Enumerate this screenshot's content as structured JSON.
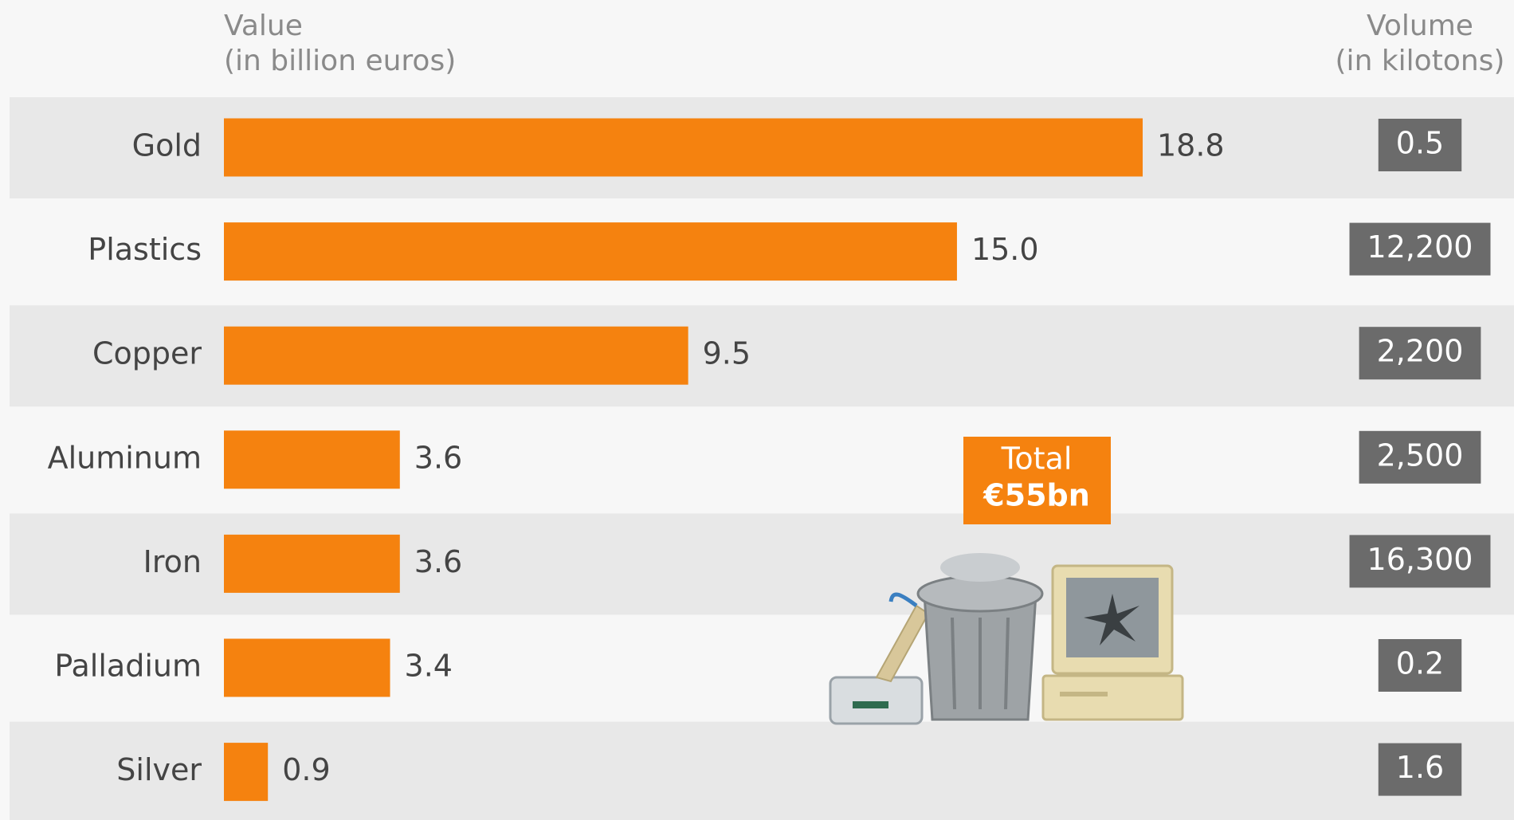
{
  "chart_data": {
    "type": "bar",
    "value_title": [
      "Value",
      "(in billion euros)"
    ],
    "categories": [
      "Gold",
      "Plastics",
      "Copper",
      "Aluminum",
      "Iron",
      "Palladium",
      "Silver"
    ],
    "values": [
      18.8,
      15.0,
      9.5,
      3.6,
      3.6,
      3.4,
      0.9
    ],
    "value_labels": [
      "18.8",
      "15.0",
      "9.5",
      "3.6",
      "3.6",
      "3.4",
      "0.9"
    ],
    "color": "#f5820f",
    "volume": {
      "title": [
        "Volume",
        "(in kilotons)"
      ],
      "values": [
        0.5,
        12200,
        2200,
        2500,
        16300,
        0.2,
        1.6
      ],
      "value_labels": [
        "0.5",
        "12,200",
        "2,200",
        "2,500",
        "16,300",
        "0.2",
        "1.6"
      ],
      "color": "#6b6b6b"
    },
    "annotation": [
      "Total",
      "€55bn"
    ]
  }
}
